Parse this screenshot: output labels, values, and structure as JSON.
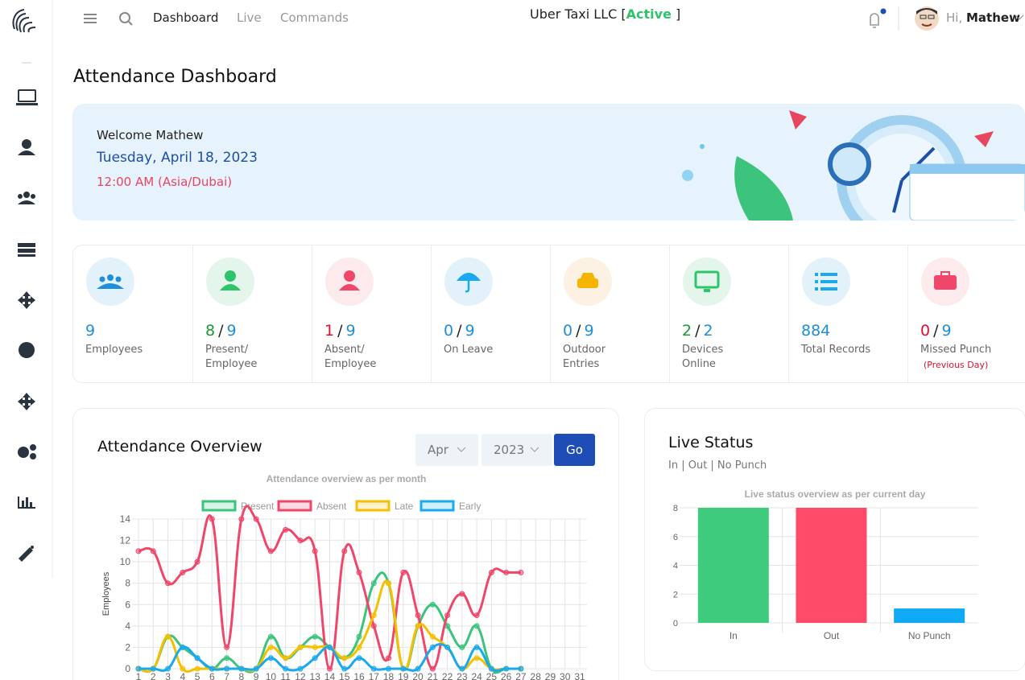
{
  "header": {
    "menu": [
      "Dashboard",
      "Live",
      "Commands"
    ],
    "company": "Uber Taxi LLC",
    "status_open": "[",
    "status": "Active",
    "status_close": "]",
    "greeting": "Hi,",
    "user": "Mathew"
  },
  "page_title": "Attendance Dashboard",
  "welcome": {
    "greeting": "Welcome Mathew",
    "date": "Tuesday, April 18, 2023",
    "time": "12:00 AM (Asia/Dubai)"
  },
  "stats": [
    {
      "value": 9,
      "label": "Employees",
      "color": "#1e8fd8"
    },
    {
      "value": 8,
      "sep": "/",
      "total": 9,
      "label": "Present/ Employee",
      "color": "#1b9a3a"
    },
    {
      "value": 1,
      "sep": "/",
      "total": 9,
      "label": "Absent/ Employee",
      "color": "#e0102d"
    },
    {
      "value": 0,
      "sep": "/",
      "total": 9,
      "label": "On Leave",
      "color": "#1e8fd8"
    },
    {
      "value": 0,
      "sep": "/",
      "total": 9,
      "label": "Outdoor Entries",
      "color": "#1e8fd8"
    },
    {
      "value": 2,
      "sep": "/",
      "total": 2,
      "label": "Devices Online",
      "color": "#1b9a3a"
    },
    {
      "value": 884,
      "label": "Total Records",
      "color": "#1e8fd8"
    },
    {
      "value": 0,
      "sep": "/",
      "total": 9,
      "label": "Missed Punch",
      "note": "(Previous Day)",
      "color": "#e0102d"
    }
  ],
  "overview": {
    "title": "Attendance Overview",
    "month": "Apr",
    "year": "2023",
    "button": "Go"
  },
  "live": {
    "title": "Live Status",
    "subtitle": "In | Out | No Punch"
  },
  "chart_data": [
    {
      "type": "line",
      "title": "Attendance overview as per month",
      "ylabel": "Employees",
      "x": [
        1,
        2,
        3,
        4,
        5,
        6,
        7,
        8,
        9,
        10,
        11,
        12,
        13,
        14,
        15,
        16,
        17,
        18,
        19,
        20,
        21,
        22,
        23,
        24,
        25,
        26,
        27,
        28,
        29,
        30,
        31
      ],
      "xlim": [
        1,
        31
      ],
      "xticks": [
        1,
        2,
        3,
        4,
        5,
        6,
        7,
        8,
        9,
        10,
        11,
        12,
        13,
        14,
        15,
        16,
        17,
        18,
        19,
        20,
        21,
        22,
        23,
        24,
        25,
        26,
        27,
        28,
        29,
        30,
        31
      ],
      "ylim": [
        0,
        14
      ],
      "yticks": [
        0,
        2,
        4,
        6,
        8,
        10,
        12,
        14
      ],
      "grid": true,
      "series": [
        {
          "name": "Present",
          "color": "#3cc47c",
          "values": [
            0,
            0,
            3,
            2,
            1,
            0,
            1,
            0,
            0,
            3,
            1,
            2,
            3,
            2,
            1,
            3,
            8,
            8,
            0,
            4,
            6,
            4,
            2,
            4,
            0,
            0,
            0,
            null,
            null,
            null,
            null
          ]
        },
        {
          "name": "Absent",
          "color": "#f0466a",
          "values": [
            11,
            11,
            8,
            9,
            10,
            14,
            2,
            14,
            14,
            11,
            13,
            12,
            11,
            0,
            11,
            9,
            4,
            1,
            9,
            5,
            0,
            5,
            7,
            5,
            9,
            9,
            9,
            null,
            null,
            null,
            null
          ]
        },
        {
          "name": "Late",
          "color": "#f5c000",
          "values": [
            0,
            0,
            3,
            0,
            0,
            0,
            0,
            0,
            0,
            2,
            1,
            2,
            2,
            2,
            1,
            2,
            5,
            8,
            0,
            4,
            3,
            2,
            0,
            1,
            0,
            0,
            0,
            null,
            null,
            null,
            null
          ]
        },
        {
          "name": "Early",
          "color": "#1aa9ee",
          "values": [
            0,
            0,
            0,
            2,
            1,
            0,
            0,
            0,
            0,
            1,
            0,
            0,
            1,
            2,
            0,
            1,
            0,
            0,
            0,
            0,
            2,
            2,
            0,
            2,
            0,
            0,
            0,
            null,
            null,
            null,
            null
          ]
        }
      ]
    },
    {
      "type": "bar",
      "title": "Live status overview as per current day",
      "categories": [
        "In",
        "Out",
        "No Punch"
      ],
      "values": [
        8,
        8,
        1
      ],
      "colors": [
        "#3ecb7e",
        "#ff4b6a",
        "#0fa9f5"
      ],
      "ylim": [
        0,
        8
      ],
      "yticks": [
        0,
        2,
        4,
        6,
        8
      ],
      "grid": true
    }
  ]
}
